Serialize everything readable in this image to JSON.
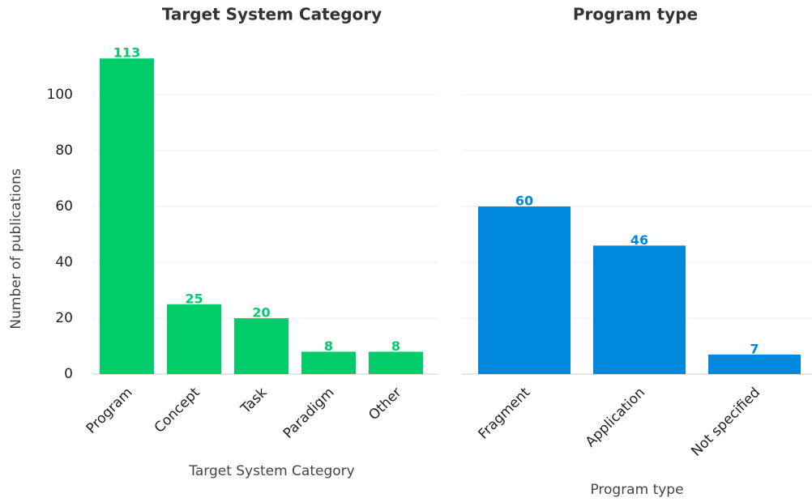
{
  "chart_data": [
    {
      "type": "bar",
      "title": "Target System Category",
      "x_label": "Target System Category",
      "y_label": "Number of publications",
      "categories": [
        "Program",
        "Concept",
        "Task",
        "Paradigm",
        "Other"
      ],
      "values": [
        113,
        25,
        20,
        8,
        8
      ],
      "color": "#00cc6a",
      "ylim": [
        0,
        118.65
      ],
      "yticks": [
        0,
        20,
        40,
        60,
        80,
        100
      ],
      "grid": true
    },
    {
      "type": "bar",
      "title": "Program type",
      "x_label": "Program type",
      "categories": [
        "Fragment",
        "Application",
        "Not specified"
      ],
      "values": [
        60,
        46,
        7
      ],
      "color": "#0088dd",
      "ylim": [
        0,
        118.65
      ],
      "yticks": [
        0,
        20,
        40,
        60,
        80,
        100
      ],
      "grid": true
    }
  ]
}
